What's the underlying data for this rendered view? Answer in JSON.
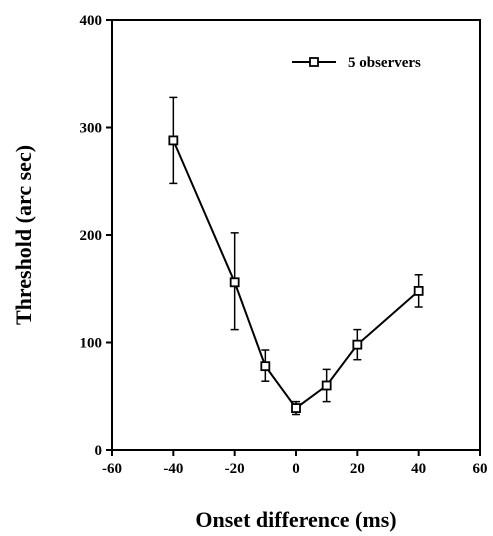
{
  "chart_data": {
    "type": "line",
    "title": "",
    "xlabel": "Onset difference (ms)",
    "ylabel": "Threshold (arc sec)",
    "xlim": [
      -60,
      60
    ],
    "ylim": [
      0,
      400
    ],
    "xticks": [
      -60,
      -40,
      -20,
      0,
      20,
      40,
      60
    ],
    "yticks": [
      0,
      100,
      200,
      300,
      400
    ],
    "xtick_labels": [
      "-60",
      "-40",
      "-20",
      "0",
      "20",
      "40",
      "60"
    ],
    "ytick_labels": [
      "0",
      "100",
      "200",
      "300",
      "400"
    ],
    "grid": false,
    "legend_position": "top-right",
    "series": [
      {
        "name": "5 observers",
        "marker": "open-square",
        "color": "#000000",
        "x": [
          -40,
          -20,
          -10,
          0,
          10,
          20,
          40
        ],
        "y": [
          288,
          156,
          78,
          39,
          60,
          98,
          148
        ],
        "err_plus": [
          40,
          46,
          15,
          6,
          15,
          14,
          15
        ],
        "err_minus": [
          40,
          44,
          14,
          6,
          15,
          14,
          15
        ]
      }
    ]
  }
}
